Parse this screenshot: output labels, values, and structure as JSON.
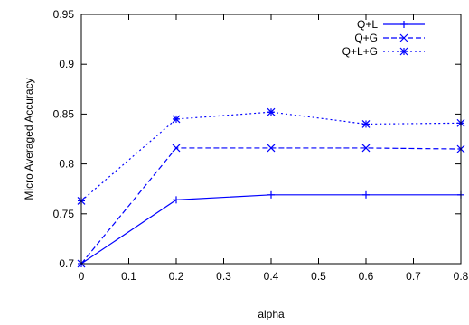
{
  "chart_data": {
    "type": "line",
    "xlabel": "alpha",
    "ylabel": "Micro Averaged Accuracy",
    "xlim": [
      0,
      0.8
    ],
    "ylim": [
      0.7,
      0.95
    ],
    "x_ticks": [
      "0",
      "0.1",
      "0.2",
      "0.3",
      "0.4",
      "0.5",
      "0.6",
      "0.7",
      "0.8"
    ],
    "y_ticks": [
      "0.7",
      "0.75",
      "0.8",
      "0.85",
      "0.9",
      "0.95"
    ],
    "grid": false,
    "legend_position": "top-right",
    "line_color": "#0000ff",
    "x": [
      0,
      0.2,
      0.4,
      0.6,
      0.8
    ],
    "series": [
      {
        "name": "Q+L",
        "values": [
          0.7,
          0.764,
          0.769,
          0.769,
          0.769
        ],
        "dash": "solid",
        "marker": "plus"
      },
      {
        "name": "Q+G",
        "values": [
          0.7,
          0.816,
          0.816,
          0.816,
          0.815
        ],
        "dash": "dashed",
        "marker": "cross"
      },
      {
        "name": "Q+L+G",
        "values": [
          0.763,
          0.845,
          0.852,
          0.84,
          0.841
        ],
        "dash": "dotted",
        "marker": "star"
      }
    ]
  }
}
